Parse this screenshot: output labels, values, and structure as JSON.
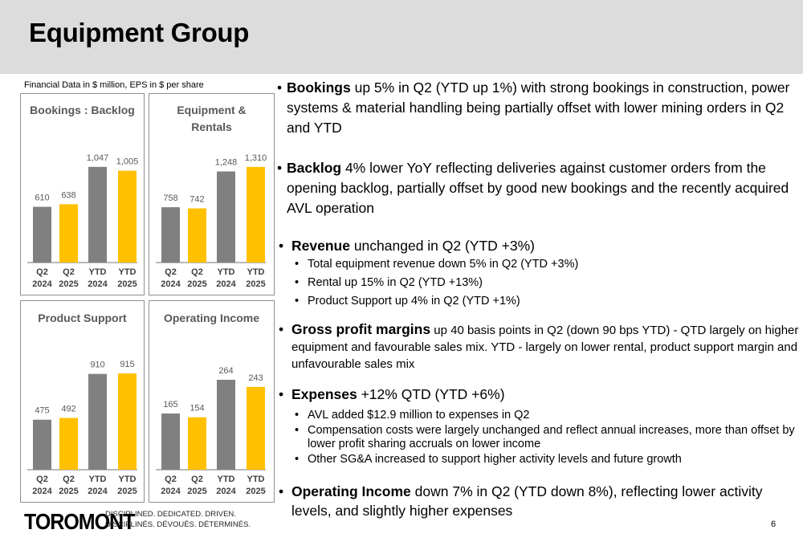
{
  "header": {
    "title": "Equipment Group"
  },
  "note": "Financial Data in $ million, EPS in $ per share",
  "chart_data": [
    {
      "type": "bar",
      "title": "Bookings : Backlog",
      "categories": [
        "Q2 2024",
        "Q2 2025",
        "YTD 2024",
        "YTD 2025"
      ],
      "values": [
        610,
        638,
        1047,
        1005
      ],
      "value_labels": [
        "610",
        "638",
        "1,047",
        "1,005"
      ],
      "colors": [
        "#808080",
        "#ffc000",
        "#808080",
        "#ffc000"
      ],
      "ylim": [
        0,
        1230
      ]
    },
    {
      "type": "bar",
      "title": "Equipment & Rentals",
      "categories": [
        "Q2 2024",
        "Q2 2025",
        "YTD 2024",
        "YTD 2025"
      ],
      "values": [
        758,
        742,
        1248,
        1310
      ],
      "value_labels": [
        "758",
        "742",
        "1,248",
        "1,310"
      ],
      "colors": [
        "#808080",
        "#ffc000",
        "#808080",
        "#ffc000"
      ],
      "ylim": [
        0,
        1540
      ]
    },
    {
      "type": "bar",
      "title": "Product Support",
      "categories": [
        "Q2 2024",
        "Q2 2025",
        "YTD 2024",
        "YTD 2025"
      ],
      "values": [
        475,
        492,
        910,
        915
      ],
      "value_labels": [
        "475",
        "492",
        "910",
        "915"
      ],
      "colors": [
        "#808080",
        "#ffc000",
        "#808080",
        "#ffc000"
      ],
      "ylim": [
        0,
        1068
      ]
    },
    {
      "type": "bar",
      "title": "Operating Income",
      "categories": [
        "Q2 2024",
        "Q2 2025",
        "YTD 2024",
        "YTD 2025"
      ],
      "values": [
        165,
        154,
        264,
        243
      ],
      "value_labels": [
        "165",
        "154",
        "264",
        "243"
      ],
      "colors": [
        "#808080",
        "#ffc000",
        "#808080",
        "#ffc000"
      ],
      "ylim": [
        0,
        330
      ]
    }
  ],
  "bullets": [
    {
      "kw": "Bookings",
      "text": " up 5% in Q2 (YTD up 1%) with strong bookings in construction, power systems & material handling being partially offset with lower mining orders in Q2 and YTD"
    },
    {
      "kw": "Backlog",
      "text": " 4% lower YoY reflecting deliveries against customer orders from the opening backlog, partially offset by good new bookings and the recently acquired AVL operation"
    },
    {
      "kw": "Revenue",
      "text": " unchanged in Q2 (YTD +3%)",
      "subs": [
        "Total equipment revenue down 5% in Q2 (YTD +3%)",
        "Rental up 15% in Q2 (YTD +13%)",
        "Product Support up 4% in Q2 (YTD +1%)"
      ]
    },
    {
      "kw": "Gross profit margins",
      "text": " up 40 basis points in Q2 (down 90 bps YTD) - QTD largely on higher equipment and favourable sales mix. YTD - largely on lower rental, product support margin and unfavourable sales mix"
    },
    {
      "kw": "Expenses",
      "text": " +12% QTD (YTD +6%)",
      "subs": [
        "AVL added $12.9 million to expenses in Q2",
        "Compensation costs were largely unchanged and reflect annual increases, more than offset by lower profit sharing accruals on lower income",
        "Other SG&A increased to support higher activity levels and future growth"
      ]
    },
    {
      "kw": "Operating Income",
      "text": " down 7% in Q2 (YTD down 8%), reflecting lower activity levels, and slightly higher expenses"
    }
  ],
  "bullet_glyph": "•",
  "footer": {
    "logo": "TOROMONT",
    "tagline_en": "DISCIPLINED. DEDICATED. DRIVEN.",
    "tagline_fr": "DISCIPLINÉS. DÉVOUÉS. DÉTERMINÉS.",
    "page": "6"
  }
}
